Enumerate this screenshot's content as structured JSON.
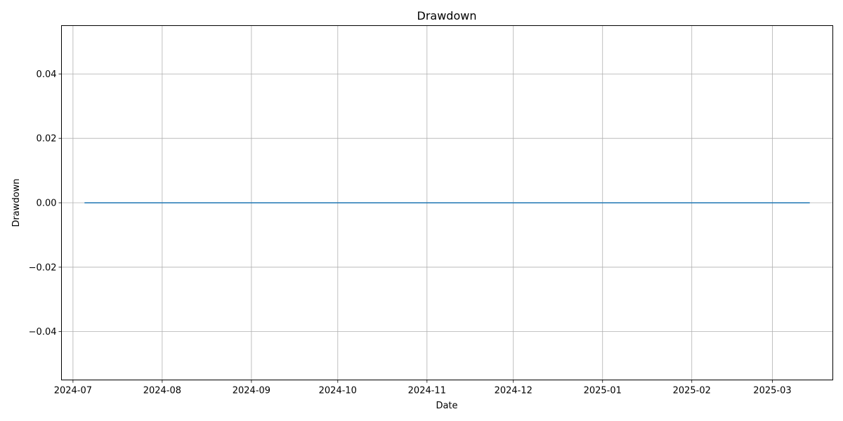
{
  "chart_data": {
    "type": "line",
    "title": "Drawdown",
    "xlabel": "Date",
    "ylabel": "Drawdown",
    "x_ticks": [
      "2024-07",
      "2024-08",
      "2024-09",
      "2024-10",
      "2024-11",
      "2024-12",
      "2025-01",
      "2025-02",
      "2025-03"
    ],
    "y_ticks": [
      "−0.04",
      "−0.02",
      "0.00",
      "0.02",
      "0.04"
    ],
    "xlim": [
      "2024-06-27",
      "2025-03-22"
    ],
    "ylim": [
      -0.055,
      0.055
    ],
    "grid": true,
    "series": [
      {
        "x": [
          "2024-07-05",
          "2025-03-14"
        ],
        "values": [
          0.0,
          0.0
        ],
        "color": "#1f77b4"
      }
    ]
  }
}
